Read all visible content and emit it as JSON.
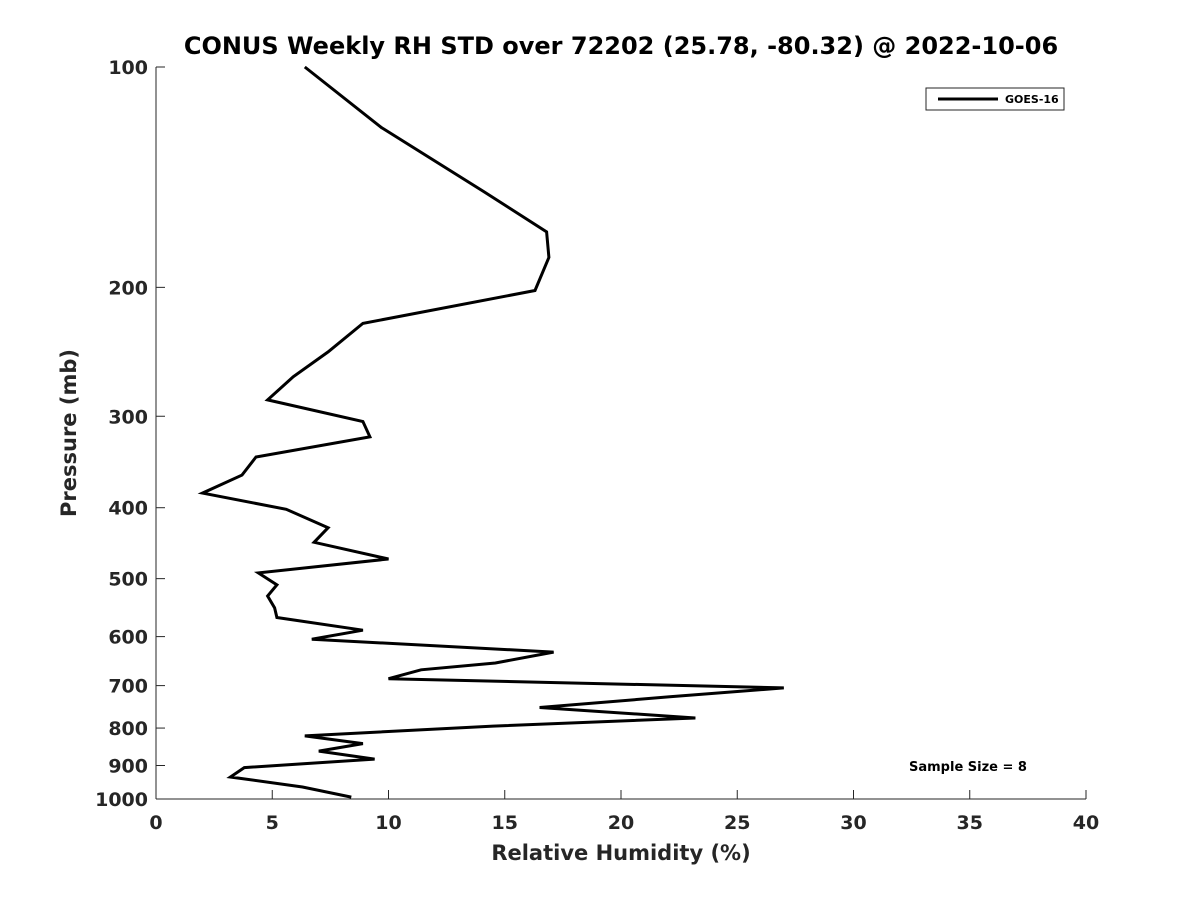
{
  "chart_data": {
    "type": "line",
    "title": "CONUS Weekly RH STD over 72202 (25.78, -80.32) @ 2022-10-06",
    "xlabel": "Relative Humidity (%)",
    "ylabel": "Pressure (mb)",
    "xlim": [
      0,
      40
    ],
    "ylim": [
      100,
      1000
    ],
    "yscale": "log",
    "yreversed": true,
    "xticks": [
      0,
      5,
      10,
      15,
      20,
      25,
      30,
      35,
      40
    ],
    "xtick_labels": [
      "0",
      "5",
      "10",
      "15",
      "20",
      "25",
      "30",
      "35",
      "40"
    ],
    "yticks": [
      100,
      200,
      300,
      400,
      500,
      600,
      700,
      800,
      900,
      1000
    ],
    "ytick_labels": [
      "100",
      "200",
      "300",
      "400",
      "500",
      "600",
      "700",
      "800",
      "900",
      "1000"
    ],
    "grid": false,
    "legend_position": "top-right",
    "annotation": "Sample Size = 8",
    "series": [
      {
        "name": "GOES-16",
        "color": "#000000",
        "x": [
          6.4,
          9.7,
          14.1,
          16.8,
          16.9,
          16.3,
          8.9,
          7.4,
          5.9,
          4.8,
          8.9,
          9.2,
          4.3,
          3.7,
          2.0,
          5.6,
          7.4,
          6.8,
          10.0,
          4.4,
          5.2,
          4.8,
          5.1,
          5.2,
          8.9,
          6.7,
          17.1,
          14.6,
          11.4,
          10.0,
          27.0,
          22.1,
          16.5,
          23.2,
          14.5,
          6.4,
          8.9,
          7.0,
          9.4,
          3.8,
          3.2,
          6.3,
          8.4
        ],
        "y": [
          100,
          121,
          148,
          168,
          182,
          202,
          224,
          245,
          265,
          285,
          305,
          320,
          341,
          361,
          382,
          402,
          426,
          446,
          470,
          491,
          510,
          528,
          548,
          565,
          588,
          605,
          630,
          652,
          666,
          685,
          705,
          725,
          750,
          775,
          795,
          820,
          840,
          860,
          882,
          906,
          933,
          963,
          994
        ]
      }
    ]
  }
}
